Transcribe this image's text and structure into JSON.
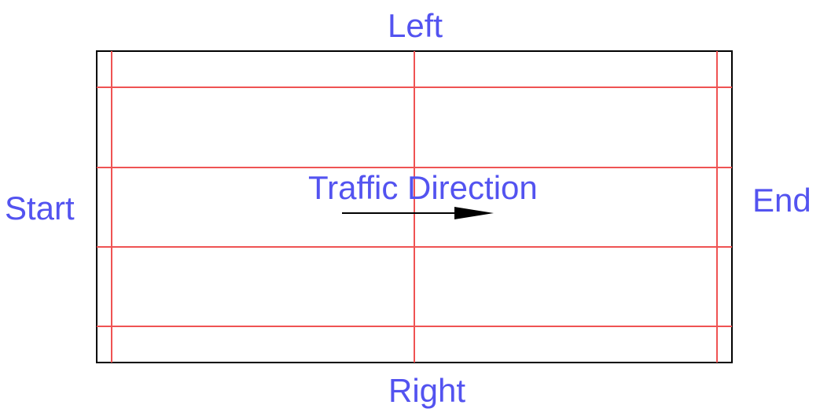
{
  "labels": {
    "top": "Left",
    "bottom": "Right",
    "start": "Start",
    "end": "End",
    "direction": "Traffic Direction"
  },
  "colors": {
    "label_text": "#5353f0",
    "grid_lines": "#ef5353",
    "border": "#000000",
    "arrow": "#000000"
  }
}
